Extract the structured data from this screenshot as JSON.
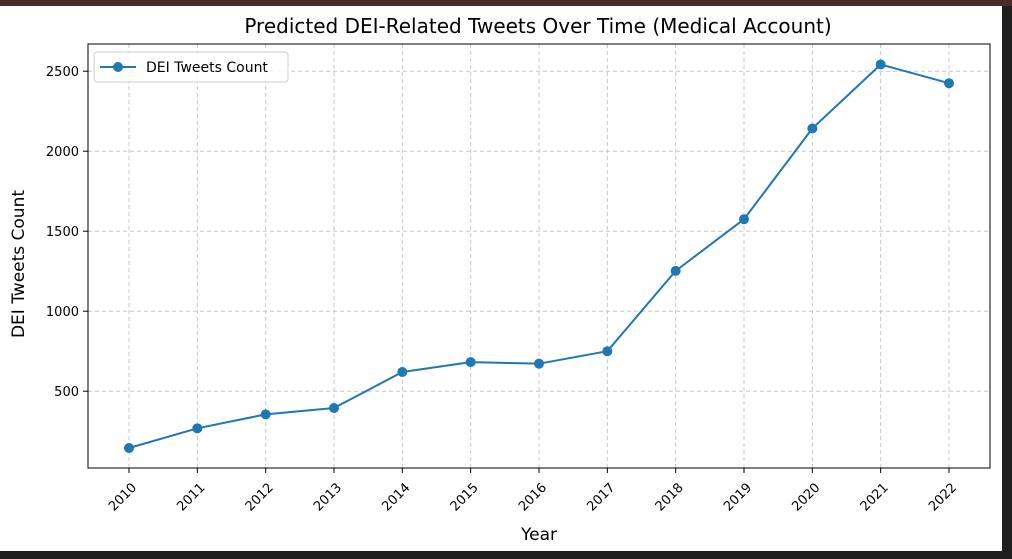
{
  "chart_data": {
    "type": "line",
    "title": "Predicted DEI-Related Tweets Over Time (Medical Account)",
    "xlabel": "Year",
    "ylabel": "DEI Tweets Count",
    "categories": [
      "2010",
      "2011",
      "2012",
      "2013",
      "2014",
      "2015",
      "2016",
      "2017",
      "2018",
      "2019",
      "2020",
      "2021",
      "2022"
    ],
    "series": [
      {
        "name": "DEI Tweets Count",
        "color": "#1f77b4",
        "marker": "circle",
        "values": [
          145,
          268,
          355,
          395,
          620,
          682,
          672,
          750,
          1252,
          1575,
          2142,
          2542,
          2425
        ]
      }
    ],
    "yticks": [
      500,
      1000,
      1500,
      2000,
      2500
    ],
    "ylim": [
      20,
      2670
    ],
    "grid": true,
    "grid_style": "dashed",
    "legend_position": "upper-left",
    "x_tick_rotation": 45
  }
}
